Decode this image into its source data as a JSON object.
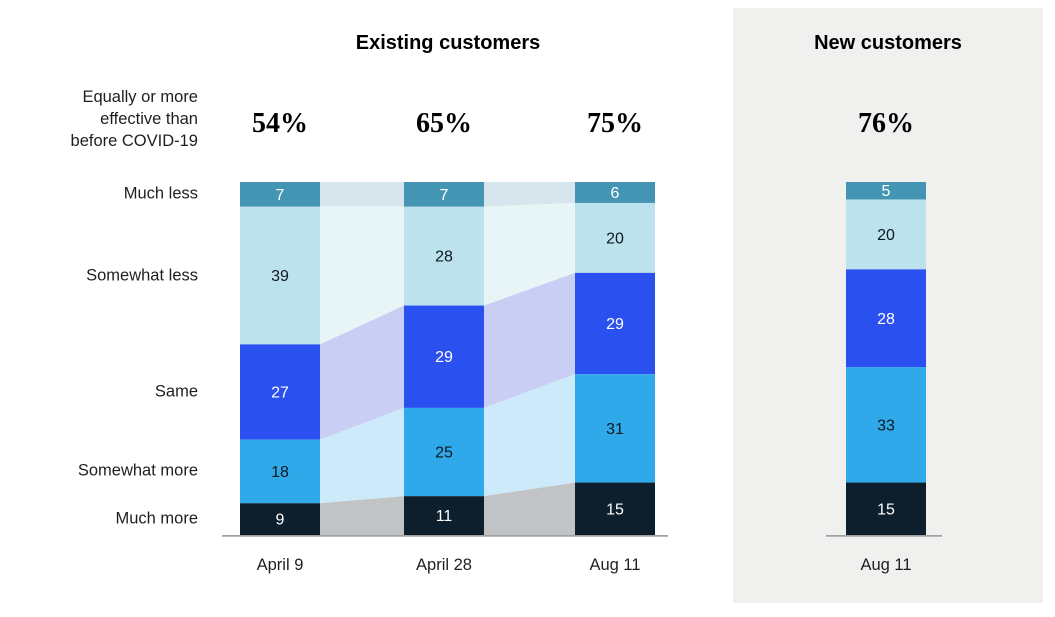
{
  "headers": {
    "existing": "Existing customers",
    "new": "New customers"
  },
  "summary_label": "Equally or more\neffective than\nbefore COVID-19",
  "chart_data": {
    "type": "bar",
    "subtype": "stacked-alluvial",
    "stack_order_top_to_bottom": [
      "Much less",
      "Somewhat less",
      "Same",
      "Somewhat more",
      "Much more"
    ],
    "summary_row_label": "Equally or more effective than before COVID-19",
    "colors": {
      "segments": [
        "#4495b3",
        "#bce2ed",
        "#2b50f0",
        "#2fa9e9",
        "#0d1f2d"
      ],
      "connectors": [
        "#d7e6ec",
        "#e8f5f7",
        "#c9cef5",
        "#cdeafa",
        "#c2c3c5"
      ],
      "value_text": [
        "#ffffff",
        "#101820",
        "#ffffff",
        "#101820",
        "#ffffff"
      ],
      "panel_bg": "#f0f0ee",
      "axis_line": "#a0a1a3"
    },
    "groups": [
      {
        "id": "existing",
        "title": "Existing customers",
        "columns": [
          {
            "x_label": "April 9",
            "summary_pct": "54%",
            "values": [
              7,
              39,
              27,
              18,
              9
            ]
          },
          {
            "x_label": "April 28",
            "summary_pct": "65%",
            "values": [
              7,
              28,
              29,
              25,
              11
            ]
          },
          {
            "x_label": "Aug 11",
            "summary_pct": "75%",
            "values": [
              6,
              20,
              29,
              31,
              15
            ]
          }
        ]
      },
      {
        "id": "new",
        "title": "New customers",
        "columns": [
          {
            "x_label": "Aug 11",
            "summary_pct": "76%",
            "values": [
              5,
              20,
              28,
              33,
              15
            ]
          }
        ]
      }
    ]
  }
}
